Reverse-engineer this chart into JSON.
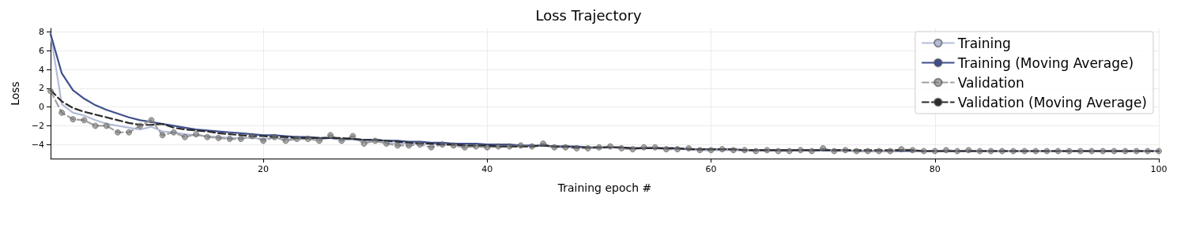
{
  "chart_data": {
    "type": "line",
    "title": "Loss Trajectory",
    "xlabel": "Training epoch #",
    "ylabel": "Loss",
    "x": [
      1,
      2,
      3,
      4,
      5,
      6,
      7,
      8,
      9,
      10,
      11,
      12,
      13,
      14,
      15,
      16,
      17,
      18,
      19,
      20,
      21,
      22,
      23,
      24,
      25,
      26,
      27,
      28,
      29,
      30,
      31,
      32,
      33,
      34,
      35,
      36,
      37,
      38,
      39,
      40,
      41,
      42,
      43,
      44,
      45,
      46,
      47,
      48,
      49,
      50,
      51,
      52,
      53,
      54,
      55,
      56,
      57,
      58,
      59,
      60,
      61,
      62,
      63,
      64,
      65,
      66,
      67,
      68,
      69,
      70,
      71,
      72,
      73,
      74,
      75,
      76,
      77,
      78,
      79,
      80,
      81,
      82,
      83,
      84,
      85,
      86,
      87,
      88,
      89,
      90,
      91,
      92,
      93,
      94,
      95,
      96,
      97,
      98,
      99,
      100
    ],
    "series": [
      {
        "name": "Training",
        "color": "#b4bcd8",
        "line_style": "solid",
        "marker": "none",
        "values": [
          7.8,
          0.3,
          -0.6,
          -0.9,
          -1.4,
          -1.8,
          -2.0,
          -2.2,
          -2.4,
          -2.1,
          -2.6,
          -2.7,
          -2.9,
          -3.0,
          -3.1,
          -3.2,
          -3.3,
          -3.3,
          -3.3,
          -3.4,
          -3.3,
          -3.4,
          -3.4,
          -3.4,
          -3.5,
          -3.3,
          -3.5,
          -3.4,
          -3.7,
          -3.6,
          -3.8,
          -3.9,
          -3.9,
          -3.9,
          -4.0,
          -4.0,
          -4.1,
          -4.1,
          -4.1,
          -4.2,
          -4.2,
          -4.2,
          -4.2,
          -4.2,
          -4.1,
          -4.3,
          -4.3,
          -4.3,
          -4.4,
          -4.4,
          -4.3,
          -4.4,
          -4.5,
          -4.4,
          -4.4,
          -4.5,
          -4.5,
          -4.5,
          -4.6,
          -4.6,
          -4.6,
          -4.6,
          -4.6,
          -4.6,
          -4.7,
          -4.6,
          -4.7,
          -4.6,
          -4.7,
          -4.6,
          -4.7,
          -4.7,
          -4.7,
          -4.7,
          -4.7,
          -4.7,
          -4.6,
          -4.7,
          -4.7,
          -4.7,
          -4.7,
          -4.7,
          -4.7,
          -4.7,
          -4.7,
          -4.7,
          -4.7,
          -4.7,
          -4.7,
          -4.7,
          -4.7,
          -4.7,
          -4.7,
          -4.7,
          -4.7,
          -4.7,
          -4.7,
          -4.7,
          -4.7,
          -4.7
        ]
      },
      {
        "name": "Training (Moving Average)",
        "color": "#3f4f8c",
        "line_style": "solid",
        "marker": "none",
        "values": [
          7.8,
          3.6,
          1.8,
          0.9,
          0.2,
          -0.3,
          -0.7,
          -1.1,
          -1.4,
          -1.6,
          -1.8,
          -2.0,
          -2.2,
          -2.4,
          -2.5,
          -2.6,
          -2.7,
          -2.8,
          -2.9,
          -3.0,
          -3.0,
          -3.1,
          -3.2,
          -3.2,
          -3.3,
          -3.3,
          -3.4,
          -3.4,
          -3.5,
          -3.5,
          -3.6,
          -3.6,
          -3.7,
          -3.7,
          -3.8,
          -3.8,
          -3.9,
          -3.9,
          -3.9,
          -4.0,
          -4.0,
          -4.0,
          -4.1,
          -4.1,
          -4.1,
          -4.2,
          -4.2,
          -4.2,
          -4.3,
          -4.3,
          -4.3,
          -4.3,
          -4.4,
          -4.4,
          -4.4,
          -4.4,
          -4.4,
          -4.5,
          -4.5,
          -4.5,
          -4.5,
          -4.5,
          -4.6,
          -4.6,
          -4.6,
          -4.6,
          -4.6,
          -4.6,
          -4.6,
          -4.6,
          -4.6,
          -4.6,
          -4.7,
          -4.7,
          -4.7,
          -4.7,
          -4.7,
          -4.7,
          -4.7,
          -4.7,
          -4.7,
          -4.7,
          -4.7,
          -4.7,
          -4.7,
          -4.7,
          -4.7,
          -4.7,
          -4.7,
          -4.7,
          -4.7,
          -4.7,
          -4.7,
          -4.7,
          -4.7,
          -4.7,
          -4.7,
          -4.7,
          -4.7,
          -4.7
        ]
      },
      {
        "name": "Validation",
        "color": "#a0a0a0",
        "line_style": "dashed",
        "marker": "circle",
        "values": [
          1.7,
          -0.6,
          -1.3,
          -1.4,
          -2.0,
          -2.0,
          -2.7,
          -2.7,
          -2.0,
          -1.4,
          -3.0,
          -2.7,
          -3.2,
          -2.9,
          -3.2,
          -3.3,
          -3.4,
          -3.4,
          -3.1,
          -3.6,
          -3.2,
          -3.6,
          -3.4,
          -3.4,
          -3.6,
          -3.0,
          -3.6,
          -3.1,
          -3.9,
          -3.6,
          -3.9,
          -4.1,
          -4.1,
          -4.0,
          -4.3,
          -4.0,
          -4.1,
          -4.3,
          -4.2,
          -4.3,
          -4.2,
          -4.2,
          -4.1,
          -4.2,
          -3.9,
          -4.3,
          -4.3,
          -4.4,
          -4.4,
          -4.3,
          -4.2,
          -4.4,
          -4.5,
          -4.3,
          -4.3,
          -4.5,
          -4.5,
          -4.4,
          -4.6,
          -4.6,
          -4.5,
          -4.6,
          -4.6,
          -4.7,
          -4.6,
          -4.7,
          -4.7,
          -4.6,
          -4.7,
          -4.4,
          -4.7,
          -4.6,
          -4.7,
          -4.7,
          -4.7,
          -4.7,
          -4.5,
          -4.6,
          -4.7,
          -4.7,
          -4.6,
          -4.7,
          -4.6,
          -4.7,
          -4.7,
          -4.7,
          -4.7,
          -4.7,
          -4.7,
          -4.7,
          -4.7,
          -4.7,
          -4.7,
          -4.7,
          -4.7,
          -4.7,
          -4.7,
          -4.7,
          -4.7,
          -4.7
        ]
      },
      {
        "name": "Validation (Moving Average)",
        "color": "#2b2b2b",
        "line_style": "dashed",
        "marker": "none",
        "values": [
          1.8,
          0.6,
          -0.1,
          -0.5,
          -0.8,
          -1.1,
          -1.4,
          -1.7,
          -1.9,
          -1.9,
          -1.8,
          -2.2,
          -2.4,
          -2.5,
          -2.6,
          -2.8,
          -2.9,
          -3.0,
          -3.1,
          -3.1,
          -3.2,
          -3.2,
          -3.3,
          -3.3,
          -3.3,
          -3.3,
          -3.3,
          -3.4,
          -3.5,
          -3.5,
          -3.6,
          -3.7,
          -3.8,
          -3.9,
          -3.9,
          -4.0,
          -4.0,
          -4.1,
          -4.1,
          -4.1,
          -4.2,
          -4.2,
          -4.2,
          -4.2,
          -4.1,
          -4.2,
          -4.2,
          -4.3,
          -4.3,
          -4.3,
          -4.3,
          -4.3,
          -4.4,
          -4.4,
          -4.4,
          -4.4,
          -4.4,
          -4.5,
          -4.5,
          -4.5,
          -4.5,
          -4.5,
          -4.6,
          -4.6,
          -4.6,
          -4.6,
          -4.6,
          -4.6,
          -4.6,
          -4.6,
          -4.6,
          -4.6,
          -4.6,
          -4.6,
          -4.6,
          -4.6,
          -4.6,
          -4.6,
          -4.7,
          -4.7,
          -4.7,
          -4.7,
          -4.7,
          -4.7,
          -4.7,
          -4.7,
          -4.7,
          -4.7,
          -4.7,
          -4.7,
          -4.7,
          -4.7,
          -4.7,
          -4.7,
          -4.7,
          -4.7,
          -4.7,
          -4.7,
          -4.7,
          -4.7
        ]
      }
    ],
    "xlim": [
      1,
      100
    ],
    "xticks": [
      20,
      40,
      60,
      80,
      100
    ],
    "ylim": [
      -5.5,
      8.4
    ],
    "yticks": [
      -4,
      -2,
      0,
      2,
      4,
      6,
      8
    ],
    "grid": true,
    "legend": "top right"
  }
}
